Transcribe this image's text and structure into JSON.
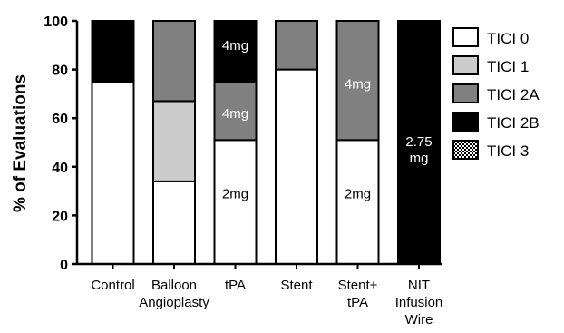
{
  "chart_data": {
    "type": "bar",
    "stacked": true,
    "ylabel": "% of Evaluations",
    "ylim": [
      0,
      100
    ],
    "yticks": [
      0,
      20,
      40,
      60,
      80,
      100
    ],
    "categories": [
      [
        "Control"
      ],
      [
        "Balloon",
        "Angioplasty"
      ],
      [
        "tPA"
      ],
      [
        "Stent"
      ],
      [
        "Stent+",
        "tPA"
      ],
      [
        "NIT",
        "Infusion",
        "Wire"
      ]
    ],
    "series": [
      {
        "name": "TICI 0",
        "color": "#ffffff",
        "values": [
          75,
          34,
          51,
          80,
          51,
          0
        ]
      },
      {
        "name": "TICI 1",
        "color": "#cccccc",
        "values": [
          0,
          33,
          0,
          0,
          0,
          0
        ]
      },
      {
        "name": "TICI 2A",
        "color": "#808080",
        "values": [
          0,
          33,
          24,
          20,
          49,
          0
        ]
      },
      {
        "name": "TICI 2B",
        "color": "#000000",
        "values": [
          25,
          0,
          25,
          0,
          0,
          100
        ]
      },
      {
        "name": "TICI 3",
        "color": "pattern-checker",
        "values": [
          0,
          0,
          0,
          0,
          0,
          0
        ]
      }
    ],
    "annotations": [
      {
        "category_index": 2,
        "y": 90,
        "lines": [
          "4mg"
        ],
        "color": "#ffffff"
      },
      {
        "category_index": 2,
        "y": 62,
        "lines": [
          "4mg"
        ],
        "color": "#ffffff"
      },
      {
        "category_index": 2,
        "y": 29,
        "lines": [
          "2mg"
        ],
        "color": "#000000"
      },
      {
        "category_index": 4,
        "y": 74,
        "lines": [
          "4mg"
        ],
        "color": "#ffffff"
      },
      {
        "category_index": 4,
        "y": 29,
        "lines": [
          "2mg"
        ],
        "color": "#000000"
      },
      {
        "category_index": 5,
        "y": 47,
        "lines": [
          "2.75",
          "mg"
        ],
        "color": "#ffffff"
      }
    ],
    "legend_position": "right"
  }
}
